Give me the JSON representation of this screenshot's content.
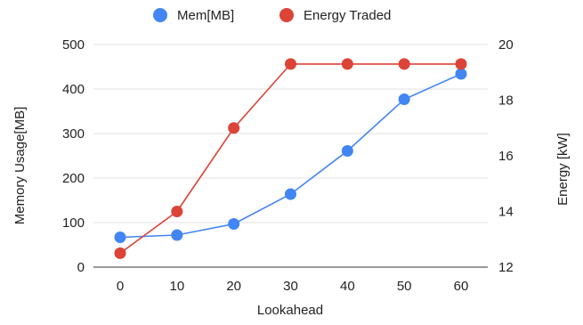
{
  "chart_data": {
    "type": "line",
    "xlabel": "Lookahead",
    "x": [
      0,
      10,
      20,
      30,
      40,
      50,
      60
    ],
    "y_left": {
      "label": "Memory Usage[MB]",
      "range": [
        0,
        500
      ],
      "ticks": [
        0,
        100,
        200,
        300,
        400,
        500
      ]
    },
    "y_right": {
      "label": "Energy [kW]",
      "range": [
        12,
        20
      ],
      "ticks": [
        12,
        14,
        16,
        18,
        20
      ]
    },
    "series": [
      {
        "name": "Mem[MB]",
        "axis": "left",
        "color": "#4285F4",
        "values": [
          67,
          72,
          97,
          164,
          261,
          377,
          434
        ]
      },
      {
        "name": "Energy Traded",
        "axis": "right",
        "color": "#DB4437",
        "values": [
          12.5,
          14.0,
          17.0,
          19.3,
          19.3,
          19.3,
          19.3
        ]
      }
    ],
    "legend_position": "top",
    "grid": true
  }
}
